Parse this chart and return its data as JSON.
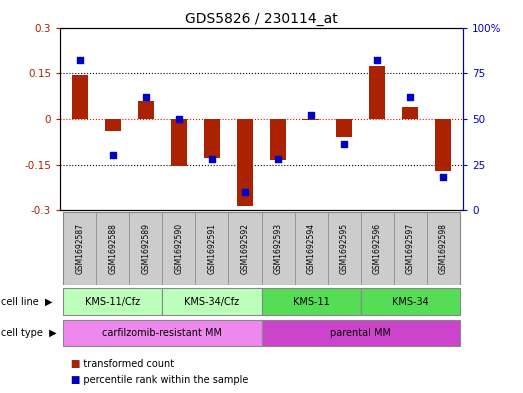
{
  "title": "GDS5826 / 230114_at",
  "samples": [
    "GSM1692587",
    "GSM1692588",
    "GSM1692589",
    "GSM1692590",
    "GSM1692591",
    "GSM1692592",
    "GSM1692593",
    "GSM1692594",
    "GSM1692595",
    "GSM1692596",
    "GSM1692597",
    "GSM1692598"
  ],
  "transformed_count": [
    0.145,
    -0.04,
    0.06,
    -0.155,
    -0.13,
    -0.285,
    -0.135,
    -0.005,
    -0.06,
    0.175,
    0.04,
    -0.17
  ],
  "percentile_rank": [
    82,
    30,
    62,
    50,
    28,
    10,
    28,
    52,
    36,
    82,
    62,
    18
  ],
  "ylim_left": [
    -0.3,
    0.3
  ],
  "yticks_left": [
    -0.3,
    -0.15,
    0.0,
    0.15,
    0.3
  ],
  "ylim_right": [
    0,
    100
  ],
  "yticks_right": [
    0,
    25,
    50,
    75,
    100
  ],
  "yticklabels_right": [
    "0",
    "25",
    "50",
    "75",
    "100%"
  ],
  "bar_color": "#aa2200",
  "point_color": "#0000cc",
  "cell_lines": [
    {
      "label": "KMS-11/Cfz",
      "start": 0,
      "end": 2,
      "color": "#bbffbb"
    },
    {
      "label": "KMS-34/Cfz",
      "start": 3,
      "end": 5,
      "color": "#bbffbb"
    },
    {
      "label": "KMS-11",
      "start": 6,
      "end": 8,
      "color": "#55dd55"
    },
    {
      "label": "KMS-34",
      "start": 9,
      "end": 11,
      "color": "#55dd55"
    }
  ],
  "cell_types": [
    {
      "label": "carfilzomib-resistant MM",
      "start": 0,
      "end": 5,
      "color": "#ee88ee"
    },
    {
      "label": "parental MM",
      "start": 6,
      "end": 11,
      "color": "#cc44cc"
    }
  ],
  "legend_items": [
    {
      "label": "transformed count",
      "color": "#aa2200"
    },
    {
      "label": "percentile rank within the sample",
      "color": "#0000cc"
    }
  ],
  "title_fontsize": 10,
  "tick_fontsize": 7.5,
  "label_fontsize": 7,
  "gsm_fontsize": 5.5,
  "annotation_fontsize": 7
}
